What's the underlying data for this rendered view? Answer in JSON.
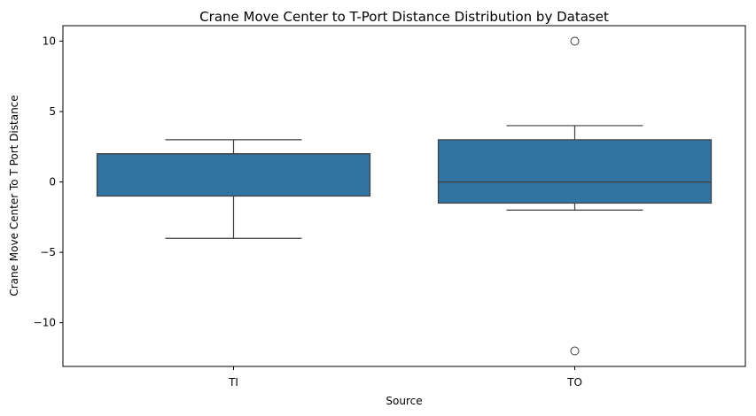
{
  "chart_data": {
    "type": "box",
    "title": "Crane Move Center to T-Port Distance Distribution by Dataset",
    "xlabel": "Source",
    "ylabel": "Crane Move Center To T Port Distance",
    "categories": [
      "TI",
      "TO"
    ],
    "ylim": [
      -13.1,
      11.1
    ],
    "yticks": [
      -10,
      -5,
      0,
      5,
      10
    ],
    "ytick_labels": [
      "−10",
      "−5",
      "0",
      "5",
      "10"
    ],
    "grid": false,
    "box_color": "#3274a1",
    "line_color": "#3f3f3f",
    "boxes": [
      {
        "category": "TI",
        "whisker_low": -4,
        "q1": -1,
        "median": 2,
        "q3": 2,
        "whisker_high": 3,
        "outliers": []
      },
      {
        "category": "TO",
        "whisker_low": -2,
        "q1": -1.5,
        "median": 0,
        "q3": 3,
        "whisker_high": 4,
        "outliers": [
          10,
          -12
        ]
      }
    ]
  }
}
